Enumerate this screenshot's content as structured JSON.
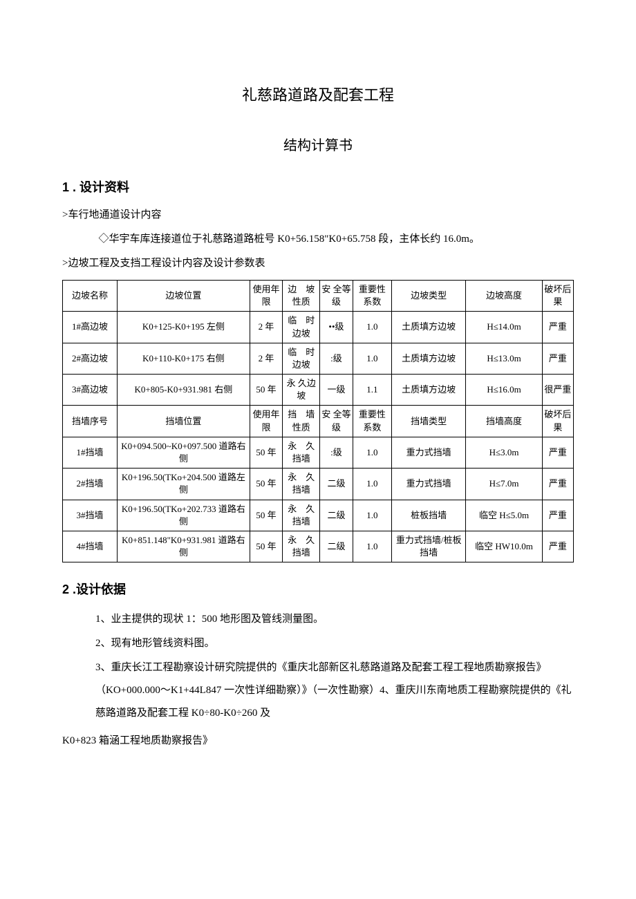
{
  "title_main": "礼慈路道路及配套工程",
  "title_sub": "结构计算书",
  "section1": {
    "heading_num": "1",
    "heading_text": " . 设计资料",
    "line1": ">车行地通道设计内容",
    "line2": "◇华宇车库连接道位于礼慈路道路桩号 K0+56.158\"K0+65.758 段，主体长约 16.0m。",
    "line3": ">边坡工程及支挡工程设计内容及设计参数表"
  },
  "table": {
    "headers1": {
      "c1": "边坡名称",
      "c2": "边坡位置",
      "c3": "使用年限",
      "c4": "边　坡性质",
      "c5": "安 全等级",
      "c6": "重要性系数",
      "c7": "边坡类型",
      "c8": "边坡高度",
      "c9": "破坏后果"
    },
    "rows_slope": [
      {
        "c1": "1#高边坡",
        "c2": "K0+125-K0+195 左侧",
        "c3": "2 年",
        "c4": "临　时边坡",
        "c5": "••级",
        "c6": "1.0",
        "c7": "土质填方边坡",
        "c8": "H≤14.0m",
        "c9": "严重"
      },
      {
        "c1": "2#高边坡",
        "c2": "K0+110-K0+175 右侧",
        "c3": "2 年",
        "c4": "临　时边坡",
        "c5": ":级",
        "c6": "1.0",
        "c7": "土质填方边坡",
        "c8": "H≤13.0m",
        "c9": "严重"
      },
      {
        "c1": "3#高边坡",
        "c2": "K0+805-K0+931.981 右侧",
        "c3": "50 年",
        "c4": "永 久边坡",
        "c5": "一级",
        "c6": "1.1",
        "c7": "土质填方边坡",
        "c8": "H≤16.0m",
        "c9": "很严重"
      }
    ],
    "headers2": {
      "c1": "挡墙序号",
      "c2": "挡墙位置",
      "c3": "使用年限",
      "c4": "挡　墙性质",
      "c5": "安 全等级",
      "c6": "重要性系数",
      "c7": "挡墙类型",
      "c8": "挡墙高度",
      "c9": "破坏后果"
    },
    "rows_wall": [
      {
        "c1": "1#挡墙",
        "c2": "K0+094.500~K0+097.500 道路右侧",
        "c3": "50 年",
        "c4": "永　久挡墙",
        "c5": ":级",
        "c6": "1.0",
        "c7": "重力式挡墙",
        "c8": "H≤3.0m",
        "c9": "严重"
      },
      {
        "c1": "2#挡墙",
        "c2": "K0+196.50(TKo+204.500 道路左侧",
        "c3": "50 年",
        "c4": "永　久挡墙",
        "c5": "二级",
        "c6": "1.0",
        "c7": "重力式挡墙",
        "c8": "H≤7.0m",
        "c9": "严重"
      },
      {
        "c1": "3#挡墙",
        "c2": "K0+196.50(TKo+202.733 道路右侧",
        "c3": "50 年",
        "c4": "永　久挡墙",
        "c5": "二级",
        "c6": "1.0",
        "c7": "桩板挡墙",
        "c8": "临空 H≤5.0m",
        "c9": "严重"
      },
      {
        "c1": "4#挡墙",
        "c2": "K0+851.148\"K0+931.981 道路右侧",
        "c3": "50 年",
        "c4": "永　久挡墙",
        "c5": "二级",
        "c6": "1.0",
        "c7": "重力式挡墙/桩板挡墙",
        "c8": "临空 HW10.0m",
        "c9": "严重"
      }
    ]
  },
  "section2": {
    "heading_num": "2",
    "heading_text": " .设计依据",
    "items": [
      "1、业主提供的现状 1：500 地形图及管线测量图。",
      "2、现有地形管线资料图。",
      "3、重庆长江工程勘察设计研究院提供的《重庆北部新区礼慈路道路及配套工程工程地质勘察报告》（KO+000.000～K1+44L847 一次性详细勘察）》（一次性勘察）4、重庆川东南地质工程勘察院提供的《礼慈路道路及配套工程 K0÷80-K0÷260 及"
    ],
    "tail": "K0+823 箱涵工程地质勘察报告》"
  }
}
